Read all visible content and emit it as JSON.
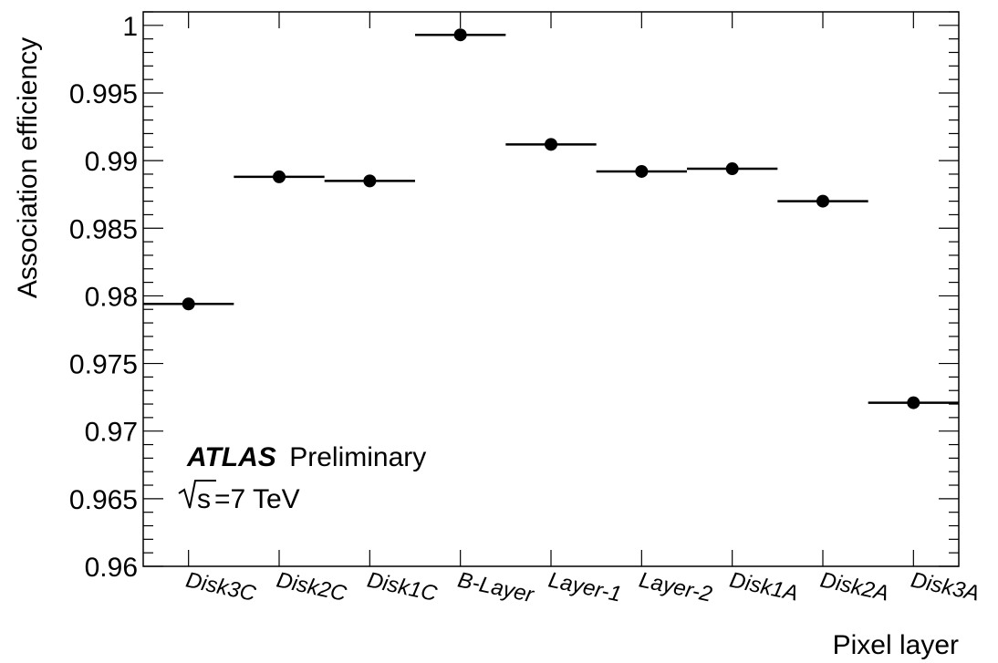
{
  "chart_data": {
    "type": "scatter",
    "categories": [
      "Disk3C",
      "Disk2C",
      "Disk1C",
      "B-Layer",
      "Layer-1",
      "Layer-2",
      "Disk1A",
      "Disk2A",
      "Disk3A"
    ],
    "values": [
      0.9794,
      0.9888,
      0.9885,
      0.9993,
      0.9912,
      0.9892,
      0.9894,
      0.987,
      0.9721
    ],
    "xlabel": "Pixel layer",
    "ylabel": "Association efficiency",
    "ylim": [
      0.96,
      1.001
    ],
    "yticks": [
      "0.96",
      "0.965",
      "0.97",
      "0.975",
      "0.98",
      "0.985",
      "0.99",
      "0.995",
      "1"
    ],
    "ytick_values": [
      0.96,
      0.965,
      0.97,
      0.975,
      0.98,
      0.985,
      0.99,
      0.995,
      1.0
    ],
    "annotations": {
      "experiment": "ATLAS",
      "status": "Preliminary",
      "energy_sqrt": "s",
      "energy_value": "=7 TeV"
    },
    "grid": false,
    "marker_color": "#000000"
  }
}
